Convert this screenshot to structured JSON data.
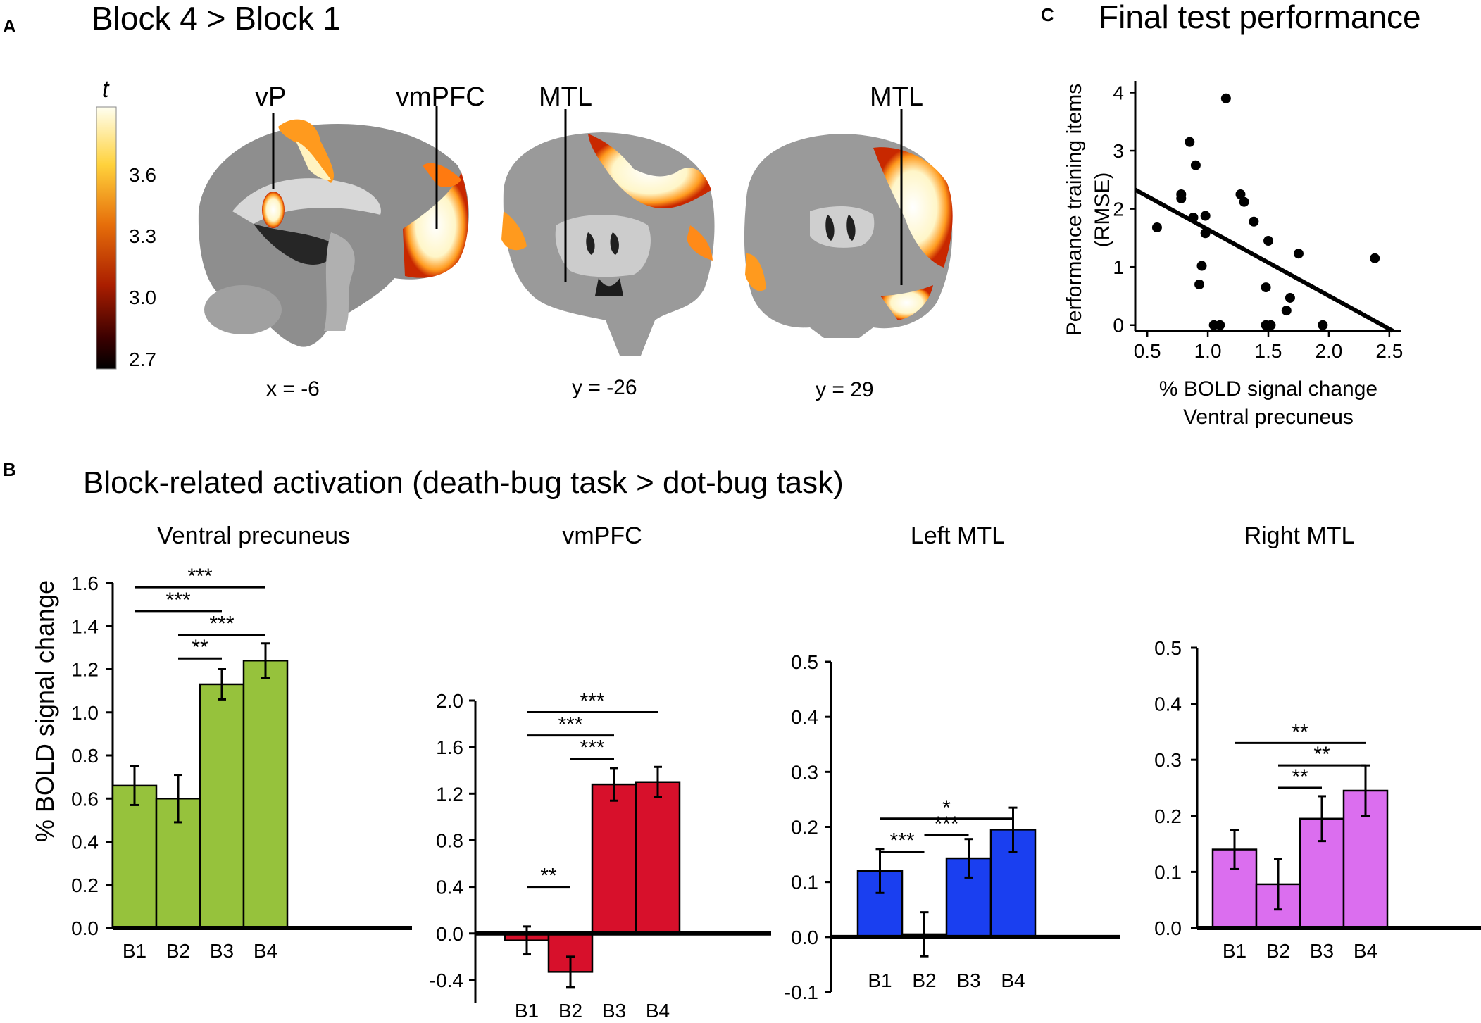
{
  "panels": {
    "a": {
      "letter": "A",
      "title": "Block 4 > Block 1",
      "colorbar": {
        "label": "t",
        "ticks": [
          "3.6",
          "3.3",
          "3.0",
          "2.7"
        ],
        "colors": [
          "#fffff0",
          "#ffd23c",
          "#e66e0a",
          "#aa1e00",
          "#3c0000",
          "#000000"
        ]
      },
      "slices": [
        {
          "label": "x = -6",
          "regions": [
            "vP",
            "vmPFC"
          ]
        },
        {
          "label": "y = -26",
          "regions": [
            "MTL"
          ]
        },
        {
          "label": "y = 29",
          "regions": [
            "MTL"
          ]
        }
      ]
    },
    "b": {
      "letter": "B",
      "title": "Block-related activation (death-bug task > dot-bug task)",
      "ylabel": "% BOLD signal change"
    },
    "c": {
      "letter": "C",
      "title": "Final test performance"
    }
  },
  "chart_data": [
    {
      "type": "bar",
      "title": "Ventral precuneus",
      "categories": [
        "B1",
        "B2",
        "B3",
        "B4"
      ],
      "values": [
        0.66,
        0.6,
        1.13,
        1.24
      ],
      "errors": [
        0.09,
        0.11,
        0.07,
        0.08
      ],
      "ylim": [
        0,
        1.6
      ],
      "yticks": [
        "0.0",
        "0.2",
        "0.4",
        "0.6",
        "0.8",
        "1.0",
        "1.2",
        "1.4",
        "1.6"
      ],
      "color": "#96c23c",
      "significance": [
        {
          "from": 0,
          "to": 3,
          "label": "***",
          "y": 1.58
        },
        {
          "from": 0,
          "to": 2,
          "label": "***",
          "y": 1.47
        },
        {
          "from": 1,
          "to": 3,
          "label": "***",
          "y": 1.36
        },
        {
          "from": 1,
          "to": 2,
          "label": "**",
          "y": 1.25
        }
      ]
    },
    {
      "type": "bar",
      "title": "vmPFC",
      "categories": [
        "B1",
        "B2",
        "B3",
        "B4"
      ],
      "values": [
        -0.06,
        -0.33,
        1.28,
        1.3
      ],
      "errors": [
        0.12,
        0.13,
        0.14,
        0.13
      ],
      "ylim": [
        -0.6,
        2.0
      ],
      "yticks": [
        "-0.4",
        "0.0",
        "0.4",
        "0.8",
        "1.2",
        "1.6",
        "2.0"
      ],
      "color": "#d7102b",
      "significance": [
        {
          "from": 0,
          "to": 3,
          "label": "***",
          "y": 1.9
        },
        {
          "from": 0,
          "to": 2,
          "label": "***",
          "y": 1.7
        },
        {
          "from": 1,
          "to": 2,
          "label": "***",
          "y": 1.5
        },
        {
          "from": 0,
          "to": 1,
          "label": "**",
          "y": 0.4
        }
      ]
    },
    {
      "type": "bar",
      "title": "Left MTL",
      "categories": [
        "B1",
        "B2",
        "B3",
        "B4"
      ],
      "values": [
        0.12,
        0.005,
        0.143,
        0.195
      ],
      "errors": [
        0.04,
        0.04,
        0.035,
        0.04
      ],
      "ylim": [
        -0.1,
        0.5
      ],
      "yticks": [
        "-0.1",
        "0.0",
        "0.1",
        "0.2",
        "0.3",
        "0.4",
        "0.5"
      ],
      "color": "#1a3ff0",
      "significance": [
        {
          "from": 0,
          "to": 3,
          "label": "*",
          "y": 0.215
        },
        {
          "from": 1,
          "to": 2,
          "label": "***",
          "y": 0.185
        },
        {
          "from": 0,
          "to": 1,
          "label": "***",
          "y": 0.155
        }
      ]
    },
    {
      "type": "bar",
      "title": "Right MTL",
      "categories": [
        "B1",
        "B2",
        "B3",
        "B4"
      ],
      "values": [
        0.14,
        0.078,
        0.195,
        0.245
      ],
      "errors": [
        0.035,
        0.045,
        0.04,
        0.045
      ],
      "ylim": [
        0,
        0.5
      ],
      "yticks": [
        "0.0",
        "0.1",
        "0.2",
        "0.3",
        "0.4",
        "0.5"
      ],
      "color": "#db6eef",
      "significance": [
        {
          "from": 0,
          "to": 3,
          "label": "**",
          "y": 0.33
        },
        {
          "from": 1,
          "to": 3,
          "label": "**",
          "y": 0.29
        },
        {
          "from": 1,
          "to": 2,
          "label": "**",
          "y": 0.25
        }
      ]
    },
    {
      "type": "scatter",
      "xlabel": "% BOLD signal change",
      "xlabel2": "Ventral precuneus",
      "ylabel": "Performance training items",
      "ylabel2": "(RMSE)",
      "xlim": [
        0.4,
        2.6
      ],
      "ylim": [
        -0.1,
        4.2
      ],
      "xticks": [
        "0.5",
        "1.0",
        "1.5",
        "2.0",
        "2.5"
      ],
      "yticks": [
        "0",
        "1",
        "2",
        "3",
        "4"
      ],
      "points": [
        [
          1.15,
          3.9
        ],
        [
          0.85,
          3.15
        ],
        [
          0.9,
          2.75
        ],
        [
          0.78,
          2.25
        ],
        [
          0.78,
          2.18
        ],
        [
          1.27,
          2.25
        ],
        [
          1.3,
          2.12
        ],
        [
          0.58,
          1.68
        ],
        [
          0.88,
          1.85
        ],
        [
          0.98,
          1.88
        ],
        [
          1.38,
          1.78
        ],
        [
          0.98,
          1.58
        ],
        [
          0.95,
          1.02
        ],
        [
          0.93,
          0.7
        ],
        [
          1.5,
          1.45
        ],
        [
          1.75,
          1.23
        ],
        [
          2.38,
          1.15
        ],
        [
          1.48,
          0.65
        ],
        [
          1.68,
          0.47
        ],
        [
          1.65,
          0.25
        ],
        [
          1.05,
          0.0
        ],
        [
          1.1,
          0.0
        ],
        [
          1.48,
          0.0
        ],
        [
          1.52,
          0.0
        ],
        [
          1.95,
          0.0
        ]
      ],
      "fit": {
        "x": [
          0.4,
          2.53
        ],
        "y": [
          2.33,
          -0.1
        ]
      }
    }
  ]
}
